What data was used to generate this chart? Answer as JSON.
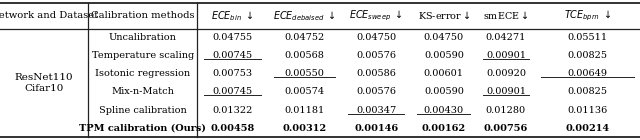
{
  "network_label": "ResNet110\nCifar10",
  "methods": [
    "Uncalibration",
    "Temperature scaling",
    "Isotonic regression",
    "Mix-n-Match",
    "Spline calibration",
    "TPM calibration (Ours)"
  ],
  "data": [
    [
      "0.04755",
      "0.04752",
      "0.04750",
      "0.04750",
      "0.04271",
      "0.05511"
    ],
    [
      "0.00745",
      "0.00568",
      "0.00576",
      "0.00590",
      "0.00901",
      "0.00825"
    ],
    [
      "0.00753",
      "0.00550",
      "0.00586",
      "0.00601",
      "0.00920",
      "0.00649"
    ],
    [
      "0.00745",
      "0.00574",
      "0.00576",
      "0.00590",
      "0.00901",
      "0.00825"
    ],
    [
      "0.01322",
      "0.01181",
      "0.00347",
      "0.00430",
      "0.01280",
      "0.01136"
    ],
    [
      "0.00458",
      "0.00312",
      "0.00146",
      "0.00162",
      "0.00756",
      "0.00214"
    ]
  ],
  "bold_method": [
    false,
    false,
    false,
    false,
    false,
    true
  ],
  "bold": [
    [
      false,
      false,
      false,
      false,
      false,
      false
    ],
    [
      false,
      false,
      false,
      false,
      false,
      false
    ],
    [
      false,
      false,
      false,
      false,
      false,
      false
    ],
    [
      false,
      false,
      false,
      false,
      false,
      false
    ],
    [
      false,
      false,
      false,
      false,
      false,
      false
    ],
    [
      true,
      true,
      true,
      true,
      true,
      true
    ]
  ],
  "underline": [
    [
      false,
      false,
      false,
      false,
      false,
      false
    ],
    [
      true,
      false,
      false,
      false,
      true,
      false
    ],
    [
      false,
      true,
      false,
      false,
      false,
      true
    ],
    [
      true,
      false,
      false,
      false,
      true,
      false
    ],
    [
      false,
      false,
      true,
      true,
      false,
      false
    ],
    [
      false,
      false,
      false,
      false,
      false,
      false
    ]
  ],
  "line_color": "#222222",
  "font_size_header": 7.2,
  "font_size_data": 7.0,
  "font_size_network": 7.5,
  "fig_width": 6.4,
  "fig_height": 1.4,
  "dpi": 100
}
